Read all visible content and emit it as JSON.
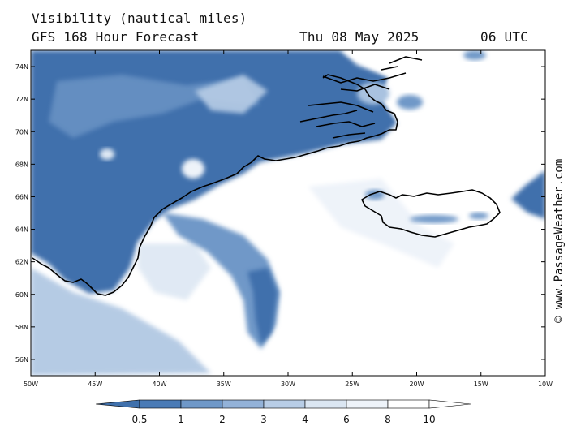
{
  "header": {
    "title": "Visibility (nautical miles)",
    "subtitle": "GFS 168 Hour Forecast",
    "date": "Thu 08 May 2025",
    "time": "06 UTC"
  },
  "watermark": "© www.PassageWeather.com",
  "map": {
    "lon_range": [
      -50,
      -10
    ],
    "lat_range": [
      55,
      75
    ],
    "lon_ticks": [
      {
        "v": -50,
        "label": "50W"
      },
      {
        "v": -45,
        "label": "45W"
      },
      {
        "v": -40,
        "label": "40W"
      },
      {
        "v": -35,
        "label": "35W"
      },
      {
        "v": -30,
        "label": "30W"
      },
      {
        "v": -25,
        "label": "25W"
      },
      {
        "v": -20,
        "label": "20W"
      },
      {
        "v": -15,
        "label": "15W"
      },
      {
        "v": -10,
        "label": "10W"
      }
    ],
    "lat_ticks": [
      {
        "v": 56,
        "label": "56N"
      },
      {
        "v": 58,
        "label": "58N"
      },
      {
        "v": 60,
        "label": "60N"
      },
      {
        "v": 62,
        "label": "62N"
      },
      {
        "v": 64,
        "label": "64N"
      },
      {
        "v": 66,
        "label": "66N"
      },
      {
        "v": 68,
        "label": "68N"
      },
      {
        "v": 70,
        "label": "70N"
      },
      {
        "v": 72,
        "label": "72N"
      },
      {
        "v": 74,
        "label": "74N"
      }
    ]
  },
  "colorbar": {
    "labels": [
      "0.5",
      "1",
      "2",
      "3",
      "4",
      "6",
      "8",
      "10"
    ],
    "colors": [
      "#3f70ac",
      "#4a7bb6",
      "#6f98c8",
      "#93b2d8",
      "#b8cde6",
      "#dbe6f2",
      "#eef3f9",
      "#ffffff"
    ]
  },
  "colors": {
    "dense": "#3f70ac",
    "mid": "#6f98c8",
    "light": "#a9c2e0",
    "faint": "#dde7f3",
    "coast": "#000000"
  }
}
